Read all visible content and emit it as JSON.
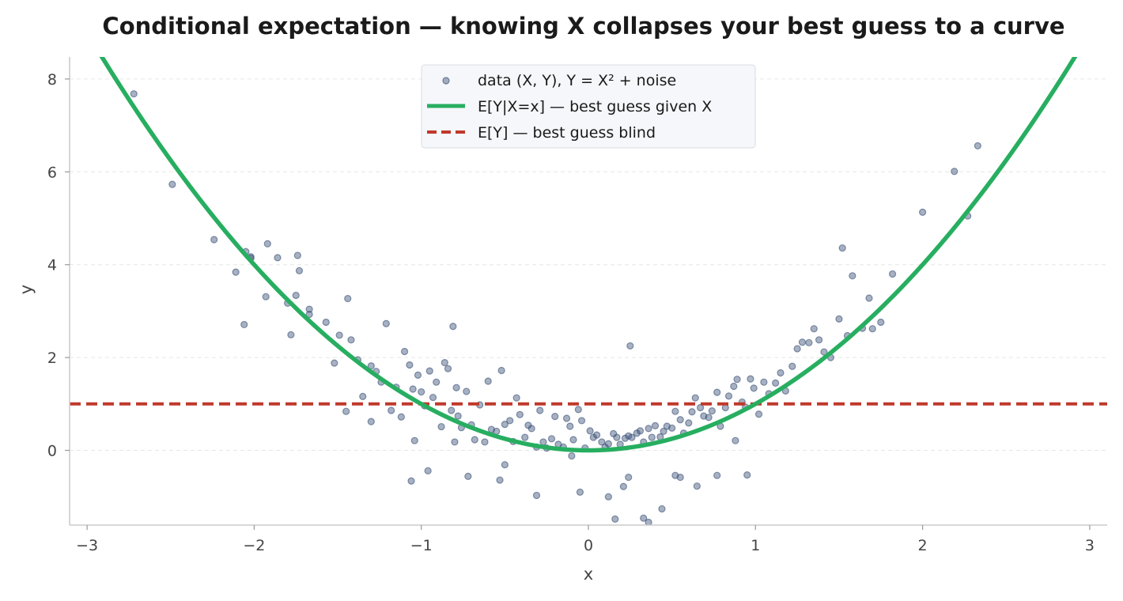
{
  "chart_data": {
    "type": "scatter",
    "title": "Conditional expectation — knowing X collapses your best guess to a curve",
    "xlabel": "x",
    "ylabel": "y",
    "xlim": [
      -3.1,
      3.1
    ],
    "ylim": [
      -1.6,
      8.5
    ],
    "xticks": [
      -3,
      -2,
      -1,
      0,
      1,
      2,
      3
    ],
    "xtick_labels": [
      "−3",
      "−2",
      "−1",
      "0",
      "1",
      "2",
      "3"
    ],
    "yticks": [
      0,
      2,
      4,
      6,
      8
    ],
    "ytick_labels": [
      "0",
      "2",
      "4",
      "6",
      "8"
    ],
    "grid": "horizontal dashed, faint",
    "legend_position": "top-center",
    "series": [
      {
        "name": "data (X, Y),  Y = X² + noise",
        "kind": "scatter",
        "color": "#3b5278",
        "x": [
          -2.72,
          -2.49,
          -2.24,
          -2.11,
          -2.06,
          -2.05,
          -2.02,
          -2.02,
          -1.93,
          -1.92,
          -1.86,
          -1.8,
          -1.78,
          -1.75,
          -1.74,
          -1.73,
          -1.67,
          -1.67,
          -1.57,
          -1.52,
          -1.49,
          -1.45,
          -1.44,
          -1.42,
          -1.38,
          -1.35,
          -1.3,
          -1.27,
          -1.24,
          -1.21,
          -1.18,
          -1.15,
          -1.12,
          -1.1,
          -1.07,
          -1.05,
          -1.04,
          -1.02,
          -1.0,
          -0.98,
          -0.95,
          -0.93,
          -0.91,
          -0.88,
          -0.86,
          -0.84,
          -0.82,
          -0.81,
          -0.79,
          -0.78,
          -0.76,
          -0.73,
          -0.7,
          -0.68,
          -0.65,
          -0.62,
          -0.6,
          -0.58,
          -0.55,
          -0.52,
          -0.5,
          -0.47,
          -0.45,
          -0.43,
          -0.41,
          -0.38,
          -0.36,
          -0.34,
          -0.31,
          -0.29,
          -0.27,
          -0.25,
          -0.22,
          -0.2,
          -0.18,
          -0.15,
          -0.13,
          -0.11,
          -0.09,
          -0.06,
          -0.04,
          -0.02,
          0.01,
          0.03,
          0.05,
          0.08,
          0.1,
          0.12,
          0.15,
          0.17,
          0.19,
          0.22,
          0.24,
          0.26,
          0.29,
          0.31,
          0.33,
          0.36,
          0.38,
          0.4,
          0.43,
          0.45,
          0.47,
          0.5,
          0.52,
          0.55,
          0.57,
          0.6,
          0.62,
          0.64,
          0.67,
          0.69,
          0.72,
          0.74,
          0.77,
          0.79,
          0.82,
          0.84,
          0.87,
          0.89,
          0.92,
          0.94,
          0.97,
          0.99,
          1.02,
          1.05,
          1.08,
          1.12,
          1.15,
          1.18,
          1.22,
          1.25,
          1.28,
          1.32,
          1.35,
          1.38,
          1.41,
          1.45,
          1.5,
          1.52,
          1.55,
          1.58,
          1.64,
          1.68,
          1.7,
          1.75,
          1.82,
          2.0,
          2.19,
          2.27,
          2.33,
          -0.72,
          -0.53,
          -0.31,
          -0.05,
          0.12,
          0.16,
          0.21,
          0.24,
          0.33,
          0.36,
          0.44,
          0.52,
          0.55,
          0.65,
          0.77,
          0.88,
          0.95,
          -0.96,
          -1.06,
          -1.3,
          -0.8,
          -0.5,
          -0.1,
          0.25
        ],
        "y": [
          7.68,
          5.73,
          4.54,
          3.84,
          2.71,
          4.28,
          4.14,
          4.17,
          3.31,
          4.45,
          4.15,
          3.17,
          2.49,
          3.34,
          4.2,
          3.87,
          2.93,
          3.04,
          2.76,
          1.88,
          2.48,
          0.84,
          3.27,
          2.38,
          1.95,
          1.16,
          1.82,
          1.7,
          1.47,
          2.73,
          0.86,
          1.36,
          0.72,
          2.13,
          1.84,
          1.32,
          0.21,
          1.62,
          1.26,
          0.96,
          1.71,
          1.14,
          1.47,
          0.51,
          1.89,
          1.76,
          0.86,
          2.67,
          1.35,
          0.74,
          0.49,
          1.27,
          0.55,
          0.23,
          0.98,
          0.18,
          1.49,
          0.45,
          0.41,
          1.72,
          0.56,
          0.64,
          0.19,
          1.13,
          0.77,
          0.28,
          0.54,
          0.47,
          0.07,
          0.86,
          0.18,
          0.05,
          0.25,
          0.73,
          0.13,
          0.07,
          0.69,
          0.52,
          0.23,
          0.88,
          0.64,
          0.05,
          0.42,
          0.28,
          0.33,
          0.18,
          0.07,
          0.14,
          0.36,
          0.28,
          0.13,
          0.26,
          0.31,
          0.28,
          0.37,
          0.42,
          0.18,
          0.47,
          0.28,
          0.53,
          0.29,
          0.41,
          0.52,
          0.48,
          0.84,
          0.66,
          0.37,
          0.59,
          0.83,
          1.13,
          0.92,
          0.74,
          0.71,
          0.85,
          1.25,
          0.52,
          0.92,
          1.17,
          1.38,
          1.53,
          1.04,
          0.93,
          1.54,
          1.34,
          0.78,
          1.47,
          1.22,
          1.45,
          1.67,
          1.28,
          1.81,
          2.19,
          2.33,
          2.32,
          2.62,
          2.38,
          2.12,
          2.0,
          2.83,
          4.36,
          2.47,
          3.76,
          2.63,
          3.28,
          2.62,
          2.76,
          3.8,
          5.13,
          6.01,
          5.05,
          6.56,
          -0.56,
          -0.64,
          -0.97,
          -0.9,
          -1.0,
          -1.48,
          -0.78,
          -0.58,
          -1.46,
          -1.55,
          -1.26,
          -0.54,
          -0.58,
          -0.77,
          -0.54,
          0.21,
          -0.53,
          -0.44,
          -0.66,
          0.62,
          0.18,
          -0.31,
          -0.12,
          2.25
        ]
      },
      {
        "name": "E[Y|X=x] — best guess given X",
        "kind": "curve",
        "formula": "y = x^2",
        "color": "#27ae60"
      },
      {
        "name": "E[Y] — best guess blind",
        "kind": "hline",
        "value": 1.0,
        "color": "#c0392b",
        "style": "dashed"
      }
    ]
  }
}
